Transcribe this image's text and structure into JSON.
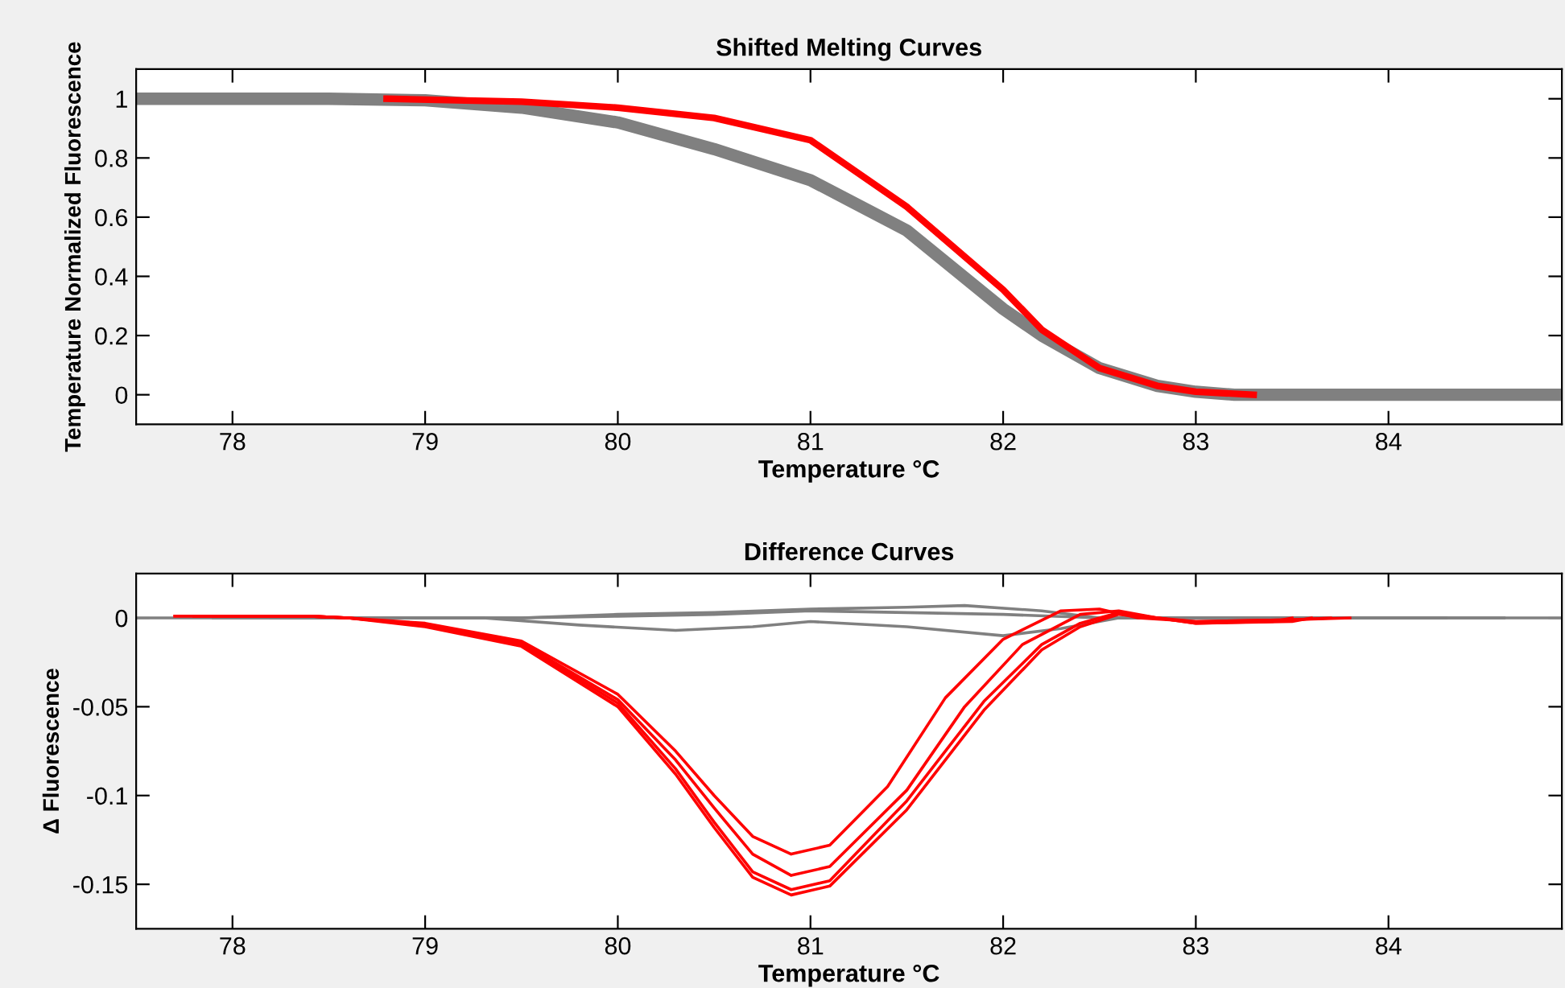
{
  "chart_data": [
    {
      "type": "line",
      "title": "Shifted Melting Curves",
      "xlabel": "Temperature °C",
      "ylabel": "Temperature Normalized Fluorescence",
      "xlim": [
        77.5,
        84.9
      ],
      "xticks": [
        78,
        79,
        80,
        81,
        82,
        83,
        84
      ],
      "ylim": [
        -0.1,
        1.1
      ],
      "yticks": [
        0,
        0.2,
        0.4,
        0.6,
        0.8,
        1
      ],
      "grid": false,
      "marker": "none",
      "line_style": "solid",
      "series": [
        {
          "color": "#808080",
          "x": [
            77.5,
            78.5,
            79.0,
            79.5,
            80.0,
            80.5,
            81.0,
            81.5,
            82.0,
            82.2,
            82.5,
            82.8,
            83.0,
            83.2,
            84.9
          ],
          "values": [
            1,
            1,
            0.995,
            0.97,
            0.92,
            0.83,
            0.725,
            0.555,
            0.29,
            0.2,
            0.09,
            0.03,
            0.01,
            0,
            0
          ]
        },
        {
          "color": "#ff0000",
          "x": [
            78.8,
            79.5,
            80.0,
            80.5,
            81.0,
            81.5,
            82.0,
            82.2,
            82.5,
            82.8,
            83.0,
            83.3
          ],
          "values": [
            1,
            0.99,
            0.97,
            0.935,
            0.86,
            0.635,
            0.355,
            0.22,
            0.09,
            0.03,
            0.01,
            0
          ]
        }
      ]
    },
    {
      "type": "line",
      "title": "Difference Curves",
      "xlabel": "Temperature °C",
      "ylabel": "Δ Fluorescence",
      "xlim": [
        77.5,
        84.9
      ],
      "xticks": [
        78,
        79,
        80,
        81,
        82,
        83,
        84
      ],
      "ylim": [
        -0.175,
        0.025
      ],
      "yticks": [
        -0.15,
        -0.1,
        -0.05,
        0
      ],
      "grid": false,
      "marker": "none",
      "line_style": "solid",
      "series": [
        {
          "color": "#808080",
          "x": [
            77.5,
            79.5,
            80.0,
            80.5,
            81.0,
            81.5,
            81.8,
            82.2,
            82.5,
            84.9
          ],
          "values": [
            0,
            0,
            0.002,
            0.003,
            0.005,
            0.006,
            0.007,
            0.004,
            0,
            0
          ]
        },
        {
          "color": "#808080",
          "x": [
            78.2,
            79.5,
            80.0,
            80.5,
            81.0,
            81.5,
            82.0,
            82.5,
            84.3
          ],
          "values": [
            0,
            0,
            0.001,
            0.002,
            0.004,
            0.003,
            0.002,
            0,
            0
          ]
        },
        {
          "color": "#808080",
          "x": [
            77.9,
            79.3,
            79.8,
            80.3,
            80.7,
            81.0,
            81.5,
            82.0,
            82.3,
            82.6,
            84.6
          ],
          "values": [
            0,
            0,
            -0.004,
            -0.007,
            -0.005,
            -0.002,
            -0.005,
            -0.01,
            -0.006,
            0,
            0
          ]
        },
        {
          "color": "#ff0000",
          "x": [
            77.7,
            78.4,
            78.6,
            79.0,
            79.5,
            80.0,
            80.3,
            80.5,
            80.7,
            80.9,
            81.1,
            81.4,
            81.7,
            82.0,
            82.3,
            82.5,
            82.7,
            83.0,
            83.5,
            83.8
          ],
          "values": [
            0.001,
            0.001,
            0,
            -0.003,
            -0.013,
            -0.043,
            -0.075,
            -0.1,
            -0.123,
            -0.133,
            -0.128,
            -0.095,
            -0.045,
            -0.012,
            0.004,
            0.005,
            0,
            -0.002,
            -0.001,
            0
          ]
        },
        {
          "color": "#ff0000",
          "x": [
            77.8,
            78.4,
            78.6,
            79.0,
            79.5,
            80.0,
            80.3,
            80.5,
            80.7,
            80.9,
            81.1,
            81.5,
            81.8,
            82.1,
            82.4,
            82.6,
            82.8,
            83.0,
            83.5,
            83.7
          ],
          "values": [
            0.001,
            0.001,
            0,
            -0.004,
            -0.014,
            -0.046,
            -0.08,
            -0.107,
            -0.133,
            -0.145,
            -0.14,
            -0.097,
            -0.05,
            -0.015,
            0.002,
            0.004,
            0,
            -0.002,
            -0.001,
            0
          ]
        },
        {
          "color": "#ff0000",
          "x": [
            77.9,
            78.4,
            78.6,
            79.0,
            79.5,
            80.0,
            80.3,
            80.5,
            80.7,
            80.9,
            81.1,
            81.5,
            81.9,
            82.2,
            82.4,
            82.6,
            82.8,
            83.0,
            83.5,
            83.6
          ],
          "values": [
            0.001,
            0.001,
            0,
            -0.004,
            -0.015,
            -0.048,
            -0.085,
            -0.115,
            -0.143,
            -0.153,
            -0.148,
            -0.103,
            -0.047,
            -0.015,
            -0.003,
            0.003,
            0,
            -0.003,
            -0.002,
            0
          ]
        },
        {
          "color": "#ff0000",
          "x": [
            78.0,
            78.4,
            78.6,
            79.0,
            79.5,
            80.0,
            80.3,
            80.5,
            80.7,
            80.9,
            81.1,
            81.5,
            81.9,
            82.2,
            82.4,
            82.6,
            82.8,
            83.0,
            83.4,
            83.5
          ],
          "values": [
            0.001,
            0.001,
            0,
            -0.005,
            -0.016,
            -0.05,
            -0.088,
            -0.118,
            -0.146,
            -0.156,
            -0.151,
            -0.108,
            -0.052,
            -0.018,
            -0.005,
            0.002,
            0,
            -0.003,
            -0.002,
            0
          ]
        }
      ]
    }
  ]
}
